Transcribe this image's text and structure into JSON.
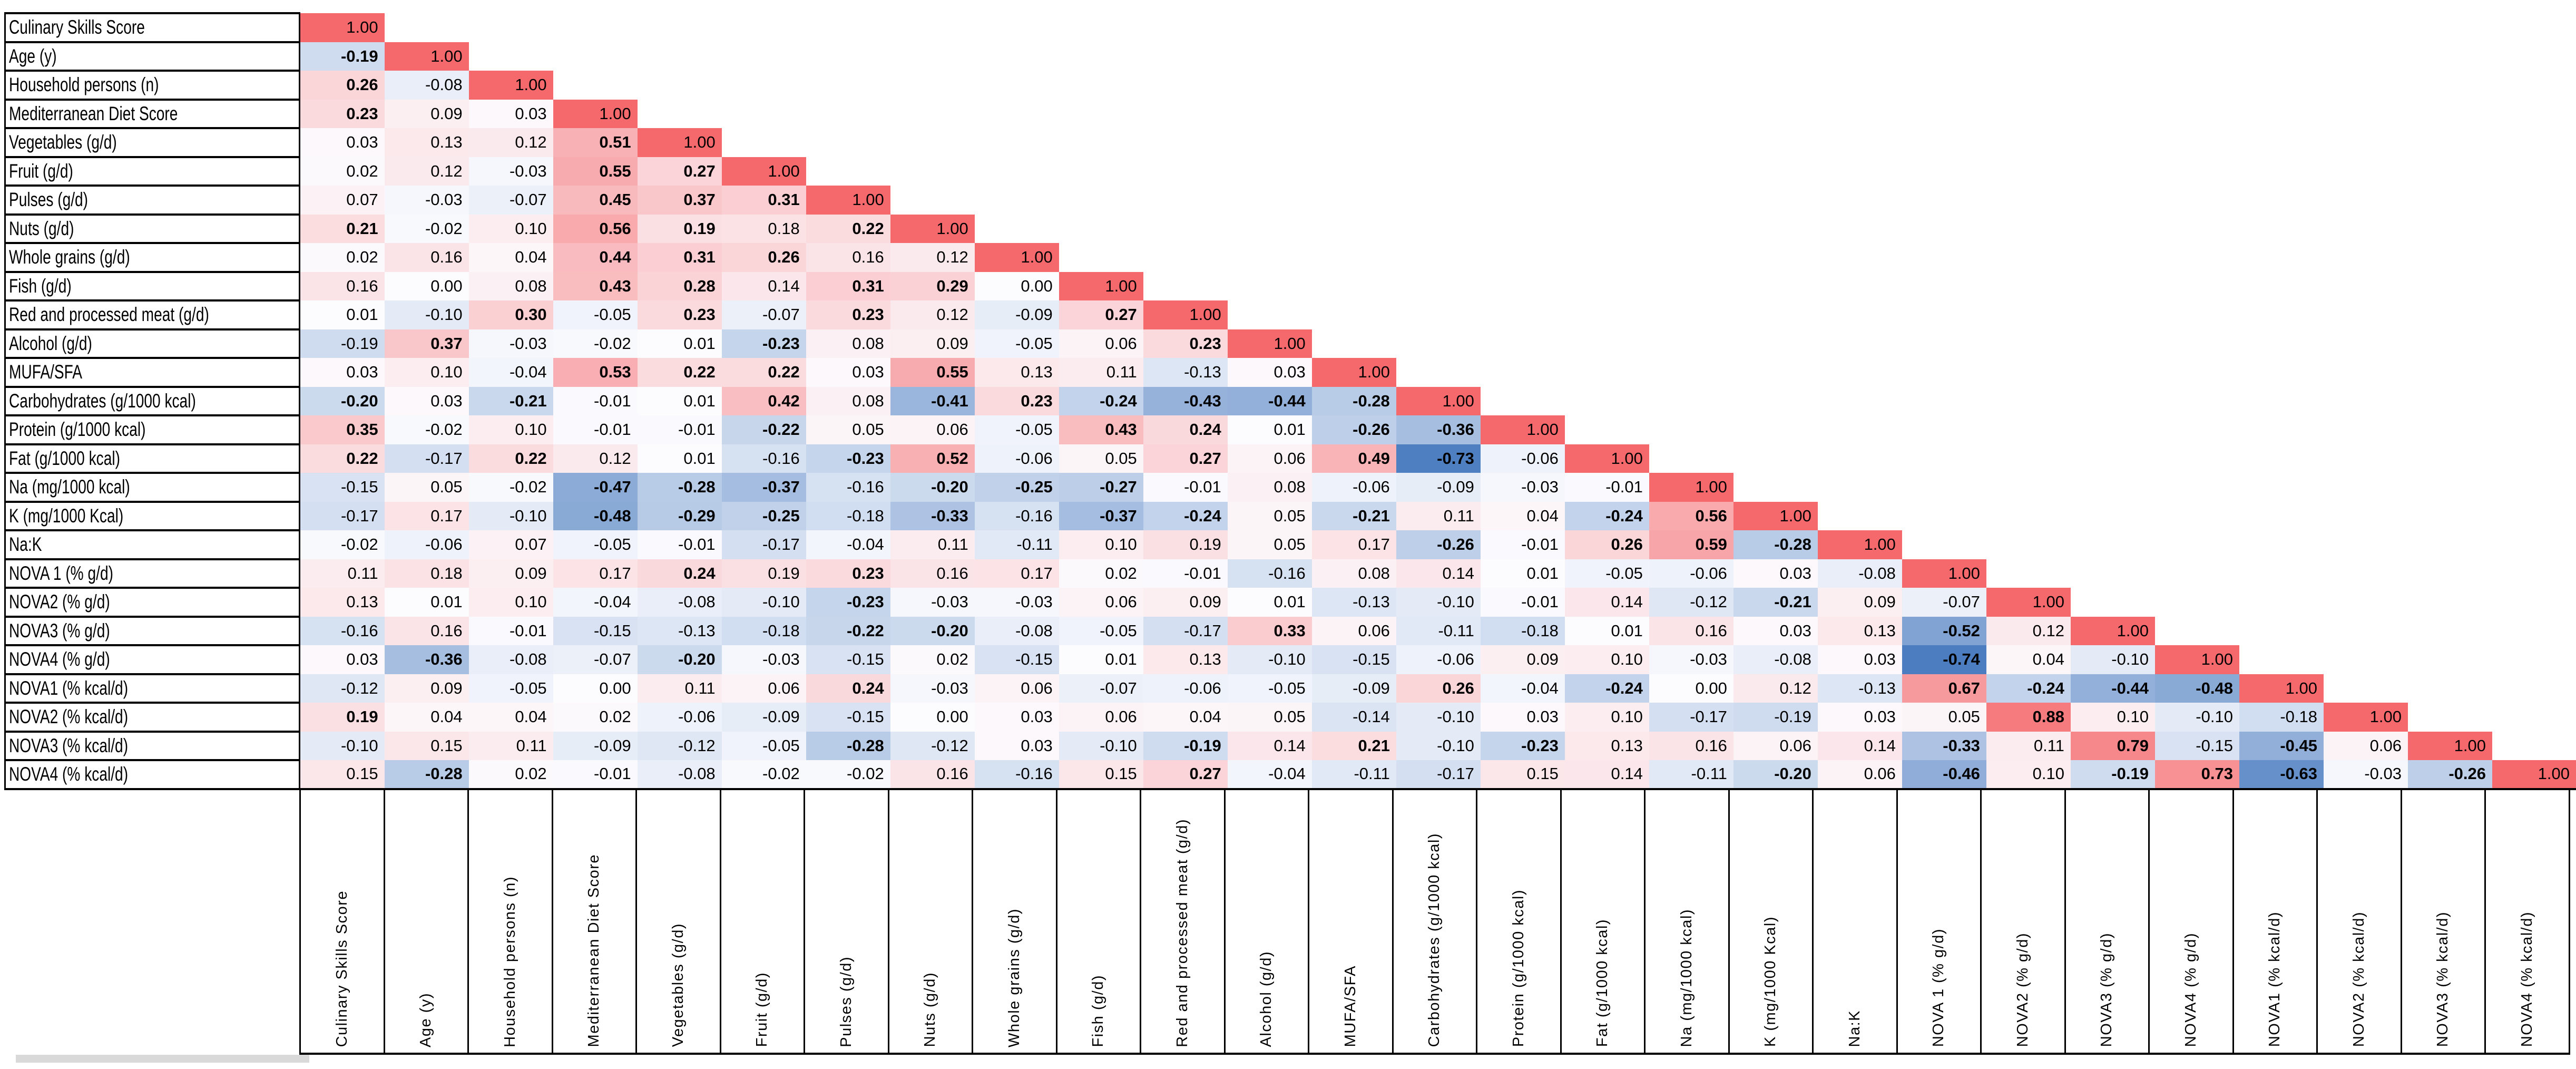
{
  "chart_data": {
    "type": "heatmap",
    "subtype": "lower-triangular correlation matrix",
    "title": "",
    "legend": "none",
    "grid": "off",
    "value_format": "two decimals",
    "bold_meaning": "bolded coefficients as shown in source image",
    "value_range_displayed": [
      -0.74,
      1.0
    ],
    "colorscale": {
      "type": "diverging red-white-blue",
      "max_value": 1.0,
      "max_color": "#F5696D",
      "mid_value": 0.0,
      "mid_color": "#FCFCFF",
      "min_value": -0.74,
      "min_color": "#4C7DC0"
    },
    "variables": [
      "Culinary Skills Score",
      "Age (y)",
      "Household persons (n)",
      "Mediterranean Diet Score",
      "Vegetables (g/d)",
      "Fruit (g/d)",
      "Pulses (g/d)",
      "Nuts (g/d)",
      "Whole grains (g/d)",
      "Fish (g/d)",
      "Red and processed meat (g/d)",
      "Alcohol (g/d)",
      "MUFA/SFA",
      "Carbohydrates (g/1000 kcal)",
      "Protein (g/1000 kcal)",
      "Fat (g/1000 kcal)",
      "Na (mg/1000 kcal)",
      "K (mg/1000 Kcal)",
      "Na:K",
      "NOVA 1 (% g/d)",
      "NOVA2 (% g/d)",
      "NOVA3 (% g/d)",
      "NOVA4 (% g/d)",
      "NOVA1 (% kcal/d)",
      "NOVA2 (% kcal/d)",
      "NOVA3 (% kcal/d)",
      "NOVA4 (% kcal/d)"
    ],
    "column_labels_same_as_variables": true,
    "rows": [
      {
        "values": [
          1.0
        ],
        "bold": []
      },
      {
        "values": [
          -0.19,
          1.0
        ],
        "bold": [
          0
        ]
      },
      {
        "values": [
          0.26,
          -0.08,
          1.0
        ],
        "bold": [
          0
        ]
      },
      {
        "values": [
          0.23,
          0.09,
          0.03,
          1.0
        ],
        "bold": [
          0
        ]
      },
      {
        "values": [
          0.03,
          0.13,
          0.12,
          0.51,
          1.0
        ],
        "bold": [
          3
        ]
      },
      {
        "values": [
          0.02,
          0.12,
          -0.03,
          0.55,
          0.27,
          1.0
        ],
        "bold": [
          3,
          4
        ]
      },
      {
        "values": [
          0.07,
          -0.03,
          -0.07,
          0.45,
          0.37,
          0.31,
          1.0
        ],
        "bold": [
          3,
          4,
          5
        ]
      },
      {
        "values": [
          0.21,
          -0.02,
          0.1,
          0.56,
          0.19,
          0.18,
          0.22,
          1.0
        ],
        "bold": [
          0,
          3,
          4,
          6
        ]
      },
      {
        "values": [
          0.02,
          0.16,
          0.04,
          0.44,
          0.31,
          0.26,
          0.16,
          0.12,
          1.0
        ],
        "bold": [
          3,
          4,
          5
        ]
      },
      {
        "values": [
          0.16,
          0.0,
          0.08,
          0.43,
          0.28,
          0.14,
          0.31,
          0.29,
          0.0,
          1.0
        ],
        "bold": [
          3,
          4,
          6,
          7
        ]
      },
      {
        "values": [
          0.01,
          -0.1,
          0.3,
          -0.05,
          0.23,
          -0.07,
          0.23,
          0.12,
          -0.09,
          0.27,
          1.0
        ],
        "bold": [
          2,
          4,
          6,
          9
        ]
      },
      {
        "values": [
          -0.19,
          0.37,
          -0.03,
          -0.02,
          0.01,
          -0.23,
          0.08,
          0.09,
          -0.05,
          0.06,
          0.23,
          1.0
        ],
        "bold": [
          1,
          5,
          10
        ]
      },
      {
        "values": [
          0.03,
          0.1,
          -0.04,
          0.53,
          0.22,
          0.22,
          0.03,
          0.55,
          0.13,
          0.11,
          -0.13,
          0.03,
          1.0
        ],
        "bold": [
          3,
          4,
          5,
          7
        ]
      },
      {
        "values": [
          -0.2,
          0.03,
          -0.21,
          -0.01,
          0.01,
          0.42,
          0.08,
          -0.41,
          0.23,
          -0.24,
          -0.43,
          -0.44,
          -0.28,
          1.0
        ],
        "bold": [
          0,
          2,
          5,
          7,
          8,
          9,
          10,
          11,
          12
        ]
      },
      {
        "values": [
          0.35,
          -0.02,
          0.1,
          -0.01,
          -0.01,
          -0.22,
          0.05,
          0.06,
          -0.05,
          0.43,
          0.24,
          0.01,
          -0.26,
          -0.36,
          1.0
        ],
        "bold": [
          0,
          5,
          9,
          10,
          12,
          13
        ]
      },
      {
        "values": [
          0.22,
          -0.17,
          0.22,
          0.12,
          0.01,
          -0.16,
          -0.23,
          0.52,
          -0.06,
          0.05,
          0.27,
          0.06,
          0.49,
          -0.73,
          -0.06,
          1.0
        ],
        "bold": [
          0,
          2,
          6,
          7,
          10,
          12,
          13
        ]
      },
      {
        "values": [
          -0.15,
          0.05,
          -0.02,
          -0.47,
          -0.28,
          -0.37,
          -0.16,
          -0.2,
          -0.25,
          -0.27,
          -0.01,
          0.08,
          -0.06,
          -0.09,
          -0.03,
          -0.01,
          1.0
        ],
        "bold": [
          3,
          4,
          5,
          7,
          8,
          9
        ]
      },
      {
        "values": [
          -0.17,
          0.17,
          -0.1,
          -0.48,
          -0.29,
          -0.25,
          -0.18,
          -0.33,
          -0.16,
          -0.37,
          -0.24,
          0.05,
          -0.21,
          0.11,
          0.04,
          -0.24,
          0.56,
          1.0
        ],
        "bold": [
          3,
          4,
          5,
          7,
          9,
          10,
          12,
          15,
          16
        ]
      },
      {
        "values": [
          -0.02,
          -0.06,
          0.07,
          -0.05,
          -0.01,
          -0.17,
          -0.04,
          0.11,
          -0.11,
          0.1,
          0.19,
          0.05,
          0.17,
          -0.26,
          -0.01,
          0.26,
          0.59,
          -0.28,
          1.0
        ],
        "bold": [
          13,
          15,
          16,
          17
        ]
      },
      {
        "values": [
          0.11,
          0.18,
          0.09,
          0.17,
          0.24,
          0.19,
          0.23,
          0.16,
          0.17,
          0.02,
          -0.01,
          -0.16,
          0.08,
          0.14,
          0.01,
          -0.05,
          -0.06,
          0.03,
          -0.08,
          1.0
        ],
        "bold": [
          4,
          6
        ]
      },
      {
        "values": [
          0.13,
          0.01,
          0.1,
          -0.04,
          -0.08,
          -0.1,
          -0.23,
          -0.03,
          -0.03,
          0.06,
          0.09,
          0.01,
          -0.13,
          -0.1,
          -0.01,
          0.14,
          -0.12,
          -0.21,
          0.09,
          -0.07,
          1.0
        ],
        "bold": [
          6,
          17
        ]
      },
      {
        "values": [
          -0.16,
          0.16,
          -0.01,
          -0.15,
          -0.13,
          -0.18,
          -0.22,
          -0.2,
          -0.08,
          -0.05,
          -0.17,
          0.33,
          0.06,
          -0.11,
          -0.18,
          0.01,
          0.16,
          0.03,
          0.13,
          -0.52,
          0.12,
          1.0
        ],
        "bold": [
          6,
          7,
          11,
          19
        ]
      },
      {
        "values": [
          0.03,
          -0.36,
          -0.08,
          -0.07,
          -0.2,
          -0.03,
          -0.15,
          0.02,
          -0.15,
          0.01,
          0.13,
          -0.1,
          -0.15,
          -0.06,
          0.09,
          0.1,
          -0.03,
          -0.08,
          0.03,
          -0.74,
          0.04,
          -0.1,
          1.0
        ],
        "bold": [
          1,
          4,
          19
        ]
      },
      {
        "values": [
          -0.12,
          0.09,
          -0.05,
          0.0,
          0.11,
          0.06,
          0.24,
          -0.03,
          0.06,
          -0.07,
          -0.06,
          -0.05,
          -0.09,
          0.26,
          -0.04,
          -0.24,
          0.0,
          0.12,
          -0.13,
          0.67,
          -0.24,
          -0.44,
          -0.48,
          1.0
        ],
        "bold": [
          6,
          13,
          15,
          19,
          20,
          21,
          22
        ]
      },
      {
        "values": [
          0.19,
          0.04,
          0.04,
          0.02,
          -0.06,
          -0.09,
          -0.15,
          0.0,
          0.03,
          0.06,
          0.04,
          0.05,
          -0.14,
          -0.1,
          0.03,
          0.1,
          -0.17,
          -0.19,
          0.03,
          0.05,
          0.88,
          0.1,
          -0.1,
          -0.18,
          1.0
        ],
        "bold": [
          0,
          20
        ]
      },
      {
        "values": [
          -0.1,
          0.15,
          0.11,
          -0.09,
          -0.12,
          -0.05,
          -0.28,
          -0.12,
          0.03,
          -0.1,
          -0.19,
          0.14,
          0.21,
          -0.1,
          -0.23,
          0.13,
          0.16,
          0.06,
          0.14,
          -0.33,
          0.11,
          0.79,
          -0.15,
          -0.45,
          0.06,
          1.0
        ],
        "bold": [
          6,
          10,
          12,
          14,
          19,
          21,
          23
        ]
      },
      {
        "values": [
          0.15,
          -0.28,
          0.02,
          -0.01,
          -0.08,
          -0.02,
          -0.02,
          0.16,
          -0.16,
          0.15,
          0.27,
          -0.04,
          -0.11,
          -0.17,
          0.15,
          0.14,
          -0.11,
          -0.2,
          0.06,
          -0.46,
          0.1,
          -0.19,
          0.73,
          -0.63,
          -0.03,
          -0.26,
          1.0
        ],
        "bold": [
          1,
          10,
          17,
          19,
          21,
          22,
          23,
          25
        ]
      }
    ]
  }
}
